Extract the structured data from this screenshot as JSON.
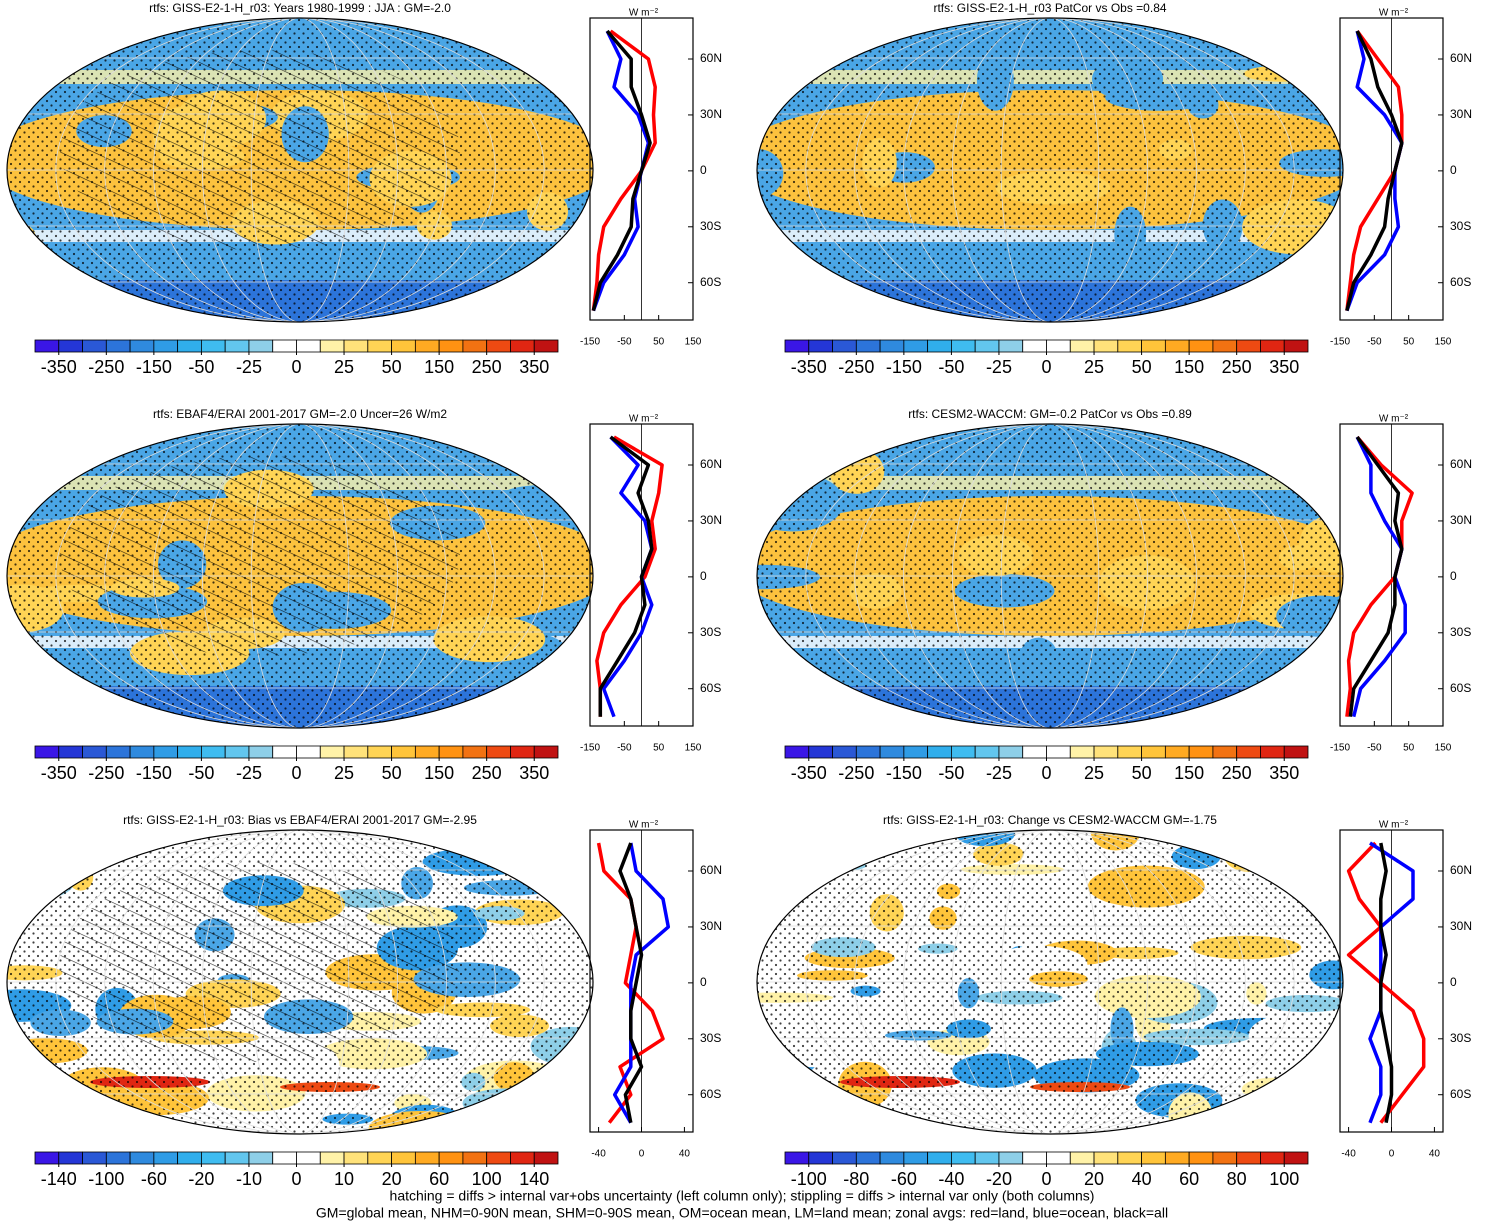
{
  "chart_data": [
    {
      "type": "zonal-map",
      "title": "rtfs: GISS-E2-1-H_r03: Years 1980-1999 : JJA : GM=-2.0",
      "colorbar": {
        "ticks": [
          -350,
          -250,
          -150,
          -50,
          -25,
          0,
          25,
          50,
          150,
          250,
          350
        ],
        "colors": [
          "#3a16e6",
          "#2436d6",
          "#2a58d6",
          "#2c74da",
          "#2f8ade",
          "#2f9ce6",
          "#30aeec",
          "#3fbcf0",
          "#62c6ee",
          "#8ecfe8",
          "#ffffff",
          "#ffffff",
          "#fff2a8",
          "#ffe27a",
          "#ffd455",
          "#ffc43a",
          "#ffaa22",
          "#ff9212",
          "#f27212",
          "#ee4a12",
          "#e02612",
          "#c01212"
        ]
      },
      "units": "W m⁻²",
      "y": [
        75,
        60,
        45,
        30,
        15,
        0,
        -15,
        -30,
        -45,
        -60,
        -75
      ],
      "ylim": [
        -80,
        82
      ],
      "yticks": [
        {
          "value": 60,
          "label": "60N"
        },
        {
          "value": 30,
          "label": "30N"
        },
        0,
        {
          "value": -30,
          "label": "30S"
        },
        {
          "value": -60,
          "label": "60S"
        }
      ],
      "xlim": [
        -150,
        150
      ],
      "xticks": [
        -150,
        -50,
        50,
        150
      ],
      "series": [
        {
          "color": "#ff0000",
          "values": [
            -90,
            20,
            40,
            35,
            40,
            0,
            -60,
            -110,
            -125,
            -130,
            -140
          ]
        },
        {
          "color": "#0000ff",
          "values": [
            -100,
            -60,
            -80,
            -10,
            20,
            0,
            -20,
            -10,
            -50,
            -110,
            -140
          ]
        },
        {
          "color": "#000000",
          "values": [
            -100,
            -30,
            -30,
            0,
            25,
            0,
            -25,
            -30,
            -70,
            -120,
            -140
          ]
        }
      ]
    },
    {
      "type": "zonal-map",
      "title": "rtfs: GISS-E2-1-H_r03 PatCor vs Obs =0.84",
      "colorbar": {
        "ticks": [
          -350,
          -250,
          -150,
          -50,
          -25,
          0,
          25,
          50,
          150,
          250,
          350
        ],
        "colors": [
          "#3a16e6",
          "#2436d6",
          "#2a58d6",
          "#2c74da",
          "#2f8ade",
          "#2f9ce6",
          "#30aeec",
          "#3fbcf0",
          "#62c6ee",
          "#8ecfe8",
          "#ffffff",
          "#ffffff",
          "#fff2a8",
          "#ffe27a",
          "#ffd455",
          "#ffc43a",
          "#ffaa22",
          "#ff9212",
          "#f27212",
          "#ee4a12",
          "#e02612",
          "#c01212"
        ]
      },
      "units": "W m⁻²",
      "y": [
        75,
        60,
        45,
        30,
        15,
        0,
        -15,
        -30,
        -45,
        -60,
        -75
      ],
      "ylim": [
        -80,
        82
      ],
      "yticks": [
        {
          "value": 60,
          "label": "60N"
        },
        {
          "value": 30,
          "label": "30N"
        },
        0,
        {
          "value": -30,
          "label": "30S"
        },
        {
          "value": -60,
          "label": "60S"
        }
      ],
      "xlim": [
        -150,
        150
      ],
      "xticks": [
        -150,
        -50,
        50,
        150
      ],
      "series": [
        {
          "color": "#ff0000",
          "values": [
            -100,
            -40,
            20,
            30,
            30,
            10,
            -40,
            -90,
            -110,
            -120,
            -130
          ]
        },
        {
          "color": "#0000ff",
          "values": [
            -100,
            -80,
            -100,
            -20,
            30,
            10,
            10,
            20,
            -20,
            -100,
            -130
          ]
        },
        {
          "color": "#000000",
          "values": [
            -100,
            -60,
            -40,
            0,
            30,
            10,
            -10,
            -20,
            -60,
            -110,
            -130
          ]
        }
      ]
    },
    {
      "type": "zonal-map",
      "title": "rtfs: EBAF4/ERAI 2001-2017 GM=-2.0 Uncer=26 W/m2",
      "colorbar": {
        "ticks": [
          -350,
          -250,
          -150,
          -50,
          -25,
          0,
          25,
          50,
          150,
          250,
          350
        ],
        "colors": [
          "#3a16e6",
          "#2436d6",
          "#2a58d6",
          "#2c74da",
          "#2f8ade",
          "#2f9ce6",
          "#30aeec",
          "#3fbcf0",
          "#62c6ee",
          "#8ecfe8",
          "#ffffff",
          "#ffffff",
          "#fff2a8",
          "#ffe27a",
          "#ffd455",
          "#ffc43a",
          "#ffaa22",
          "#ff9212",
          "#f27212",
          "#ee4a12",
          "#e02612",
          "#c01212"
        ]
      },
      "units": "W m⁻²",
      "y": [
        75,
        60,
        45,
        30,
        15,
        0,
        -15,
        -30,
        -45,
        -60,
        -75
      ],
      "ylim": [
        -80,
        82
      ],
      "yticks": [
        {
          "value": 60,
          "label": "60N"
        },
        {
          "value": 30,
          "label": "30N"
        },
        0,
        {
          "value": -30,
          "label": "30S"
        },
        {
          "value": -60,
          "label": "60S"
        }
      ],
      "xlim": [
        -150,
        150
      ],
      "xticks": [
        -150,
        -50,
        50,
        150
      ],
      "series": [
        {
          "color": "#ff0000",
          "values": [
            -80,
            60,
            50,
            30,
            40,
            10,
            -60,
            -110,
            -130,
            -120,
            -120
          ]
        },
        {
          "color": "#0000ff",
          "values": [
            -90,
            -10,
            -60,
            10,
            30,
            0,
            30,
            0,
            -50,
            -110,
            -80
          ]
        },
        {
          "color": "#000000",
          "values": [
            -90,
            20,
            -10,
            20,
            30,
            0,
            10,
            -20,
            -70,
            -120,
            -120
          ]
        }
      ]
    },
    {
      "type": "zonal-map",
      "title": "rtfs: CESM2-WACCM: GM=-0.2 PatCor vs Obs =0.89",
      "colorbar": {
        "ticks": [
          -350,
          -250,
          -150,
          -50,
          -25,
          0,
          25,
          50,
          150,
          250,
          350
        ],
        "colors": [
          "#3a16e6",
          "#2436d6",
          "#2a58d6",
          "#2c74da",
          "#2f8ade",
          "#2f9ce6",
          "#30aeec",
          "#3fbcf0",
          "#62c6ee",
          "#8ecfe8",
          "#ffffff",
          "#ffffff",
          "#fff2a8",
          "#ffe27a",
          "#ffd455",
          "#ffc43a",
          "#ffaa22",
          "#ff9212",
          "#f27212",
          "#ee4a12",
          "#e02612",
          "#c01212"
        ]
      },
      "units": "W m⁻²",
      "y": [
        75,
        60,
        45,
        30,
        15,
        0,
        -15,
        -30,
        -45,
        -60,
        -75
      ],
      "ylim": [
        -80,
        82
      ],
      "yticks": [
        {
          "value": 60,
          "label": "60N"
        },
        {
          "value": 30,
          "label": "30N"
        },
        0,
        {
          "value": -30,
          "label": "30S"
        },
        {
          "value": -60,
          "label": "60S"
        }
      ],
      "xlim": [
        -150,
        150
      ],
      "xticks": [
        -150,
        -50,
        50,
        150
      ],
      "series": [
        {
          "color": "#ff0000",
          "values": [
            -100,
            -30,
            60,
            30,
            30,
            10,
            -60,
            -110,
            -125,
            -120,
            -130
          ]
        },
        {
          "color": "#0000ff",
          "values": [
            -100,
            -60,
            -60,
            -20,
            30,
            10,
            40,
            40,
            -20,
            -90,
            -110
          ]
        },
        {
          "color": "#000000",
          "values": [
            -100,
            -40,
            20,
            10,
            30,
            10,
            10,
            -10,
            -60,
            -110,
            -120
          ]
        }
      ]
    },
    {
      "type": "zonal-map",
      "title": "rtfs: GISS-E2-1-H_r03: Bias vs EBAF4/ERAI 2001-2017 GM=-2.95",
      "colorbar": {
        "ticks": [
          -140,
          -100,
          -60,
          -20,
          -10,
          0,
          10,
          20,
          60,
          100,
          140
        ],
        "colors": [
          "#3a16e6",
          "#2436d6",
          "#2a58d6",
          "#2c74da",
          "#2f8ade",
          "#2f9ce6",
          "#30aeec",
          "#3fbcf0",
          "#62c6ee",
          "#8ecfe8",
          "#ffffff",
          "#ffffff",
          "#fff2a8",
          "#ffe27a",
          "#ffd455",
          "#ffc43a",
          "#ffaa22",
          "#ff9212",
          "#f27212",
          "#ee4a12",
          "#e02612",
          "#c01212"
        ]
      },
      "units": "W m⁻²",
      "y": [
        75,
        60,
        45,
        30,
        15,
        0,
        -15,
        -30,
        -45,
        -60,
        -75
      ],
      "ylim": [
        -80,
        82
      ],
      "yticks": [
        {
          "value": 60,
          "label": "60N"
        },
        {
          "value": 30,
          "label": "30N"
        },
        0,
        {
          "value": -30,
          "label": "30S"
        },
        {
          "value": -60,
          "label": "60S"
        }
      ],
      "xlim": [
        -48,
        48
      ],
      "xticks": [
        -40,
        0,
        40
      ],
      "series": [
        {
          "color": "#ff0000",
          "values": [
            -40,
            -35,
            -10,
            -5,
            -10,
            -15,
            10,
            20,
            -20,
            -10,
            -30
          ]
        },
        {
          "color": "#0000ff",
          "values": [
            -10,
            -5,
            20,
            25,
            -5,
            -10,
            -10,
            -10,
            -10,
            -25,
            -10
          ]
        },
        {
          "color": "#000000",
          "values": [
            -10,
            -20,
            -10,
            -5,
            0,
            -5,
            -10,
            -10,
            0,
            -15,
            -10
          ]
        }
      ]
    },
    {
      "type": "zonal-map",
      "title": "rtfs: GISS-E2-1-H_r03: Change vs CESM2-WACCM GM=-1.75",
      "colorbar": {
        "ticks": [
          -100,
          -80,
          -60,
          -40,
          -20,
          0,
          20,
          40,
          60,
          80,
          100
        ],
        "colors": [
          "#3a16e6",
          "#2436d6",
          "#2a58d6",
          "#2c74da",
          "#2f8ade",
          "#2f9ce6",
          "#30aeec",
          "#3fbcf0",
          "#62c6ee",
          "#8ecfe8",
          "#ffffff",
          "#ffffff",
          "#fff2a8",
          "#ffe27a",
          "#ffd455",
          "#ffc43a",
          "#ffaa22",
          "#ff9212",
          "#f27212",
          "#ee4a12",
          "#e02612",
          "#c01212"
        ]
      },
      "units": "W m⁻²",
      "y": [
        75,
        60,
        45,
        30,
        15,
        0,
        -15,
        -30,
        -45,
        -60,
        -75
      ],
      "ylim": [
        -80,
        82
      ],
      "yticks": [
        {
          "value": 60,
          "label": "60N"
        },
        {
          "value": 30,
          "label": "30N"
        },
        0,
        {
          "value": -30,
          "label": "30S"
        },
        {
          "value": -60,
          "label": "60S"
        }
      ],
      "xlim": [
        -48,
        48
      ],
      "xticks": [
        -40,
        0,
        40
      ],
      "series": [
        {
          "color": "#ff0000",
          "values": [
            -15,
            -40,
            -30,
            -10,
            -40,
            -10,
            20,
            30,
            30,
            10,
            -10
          ]
        },
        {
          "color": "#0000ff",
          "values": [
            -20,
            20,
            20,
            -10,
            -10,
            -10,
            -10,
            -20,
            -10,
            -10,
            -20
          ]
        },
        {
          "color": "#000000",
          "values": [
            -10,
            -5,
            -10,
            -10,
            -5,
            -10,
            -10,
            -5,
            0,
            0,
            -5
          ]
        }
      ]
    }
  ],
  "notes": [
    "hatching = diffs > internal var+obs uncertainty (left column only); stippling = diffs > internal var only (both columns)",
    "GM=global mean, NHM=0-90N mean, SHM=0-90S mean, OM=ocean mean, LM=land mean; zonal avgs: red=land, blue=ocean, black=all"
  ]
}
